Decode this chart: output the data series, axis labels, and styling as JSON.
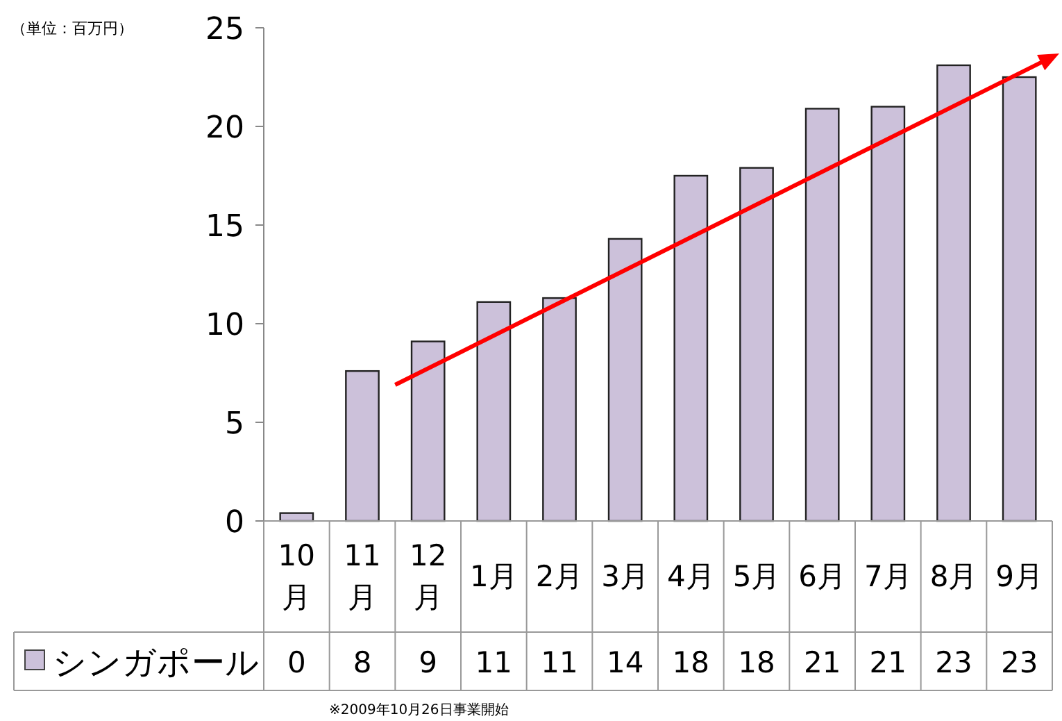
{
  "chart_data": {
    "type": "bar",
    "ylabel": "（単位：百万円）",
    "categories": [
      "10月",
      "11月",
      "12月",
      "1月",
      "2月",
      "3月",
      "4月",
      "5月",
      "6月",
      "7月",
      "8月",
      "9月"
    ],
    "series": [
      {
        "name": "シンガポール",
        "color": "#ccc1da",
        "values": [
          0.4,
          7.6,
          9.1,
          11.1,
          11.3,
          14.3,
          17.5,
          17.9,
          20.9,
          21.0,
          23.1,
          22.5
        ],
        "value_labels": [
          "0",
          "8",
          "9",
          "11",
          "11",
          "14",
          "18",
          "18",
          "21",
          "21",
          "23",
          "23"
        ]
      }
    ],
    "ylim": [
      0,
      25
    ],
    "yticks": [
      0,
      5,
      10,
      15,
      20,
      25
    ],
    "grid": false,
    "legend": "bottom left",
    "annotations": [
      "※2009年10月26日事業開始"
    ]
  }
}
